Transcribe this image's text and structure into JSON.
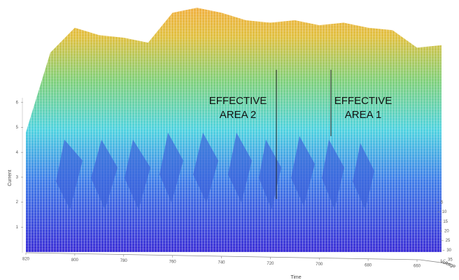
{
  "chart_data": {
    "type": "surface3d",
    "xlabel": "Time",
    "ylabel": "Voltage",
    "zlabel": "Current",
    "x": [
      820,
      810,
      800,
      790,
      780,
      770,
      760,
      750,
      740,
      730,
      720,
      710,
      700,
      690,
      680,
      670,
      660,
      650
    ],
    "values": [
      4.8,
      8,
      9,
      8.7,
      8.6,
      8.4,
      9.6,
      9.8,
      9.6,
      9.3,
      9.2,
      9.3,
      9.1,
      9.2,
      9,
      8.9,
      8.2,
      8.3
    ],
    "xlim": [
      820,
      660
    ],
    "xticks": [
      820,
      800,
      780,
      760,
      740,
      720,
      700,
      680,
      660
    ],
    "zlim": [
      0,
      10
    ],
    "zticks": [
      1,
      2,
      3,
      4,
      5,
      6
    ],
    "yticks": [
      5,
      10,
      15,
      20,
      25,
      30,
      35
    ],
    "annotations": [
      "EFFECTIVE AREA 2",
      "EFFECTIVE AREA 1"
    ]
  }
}
